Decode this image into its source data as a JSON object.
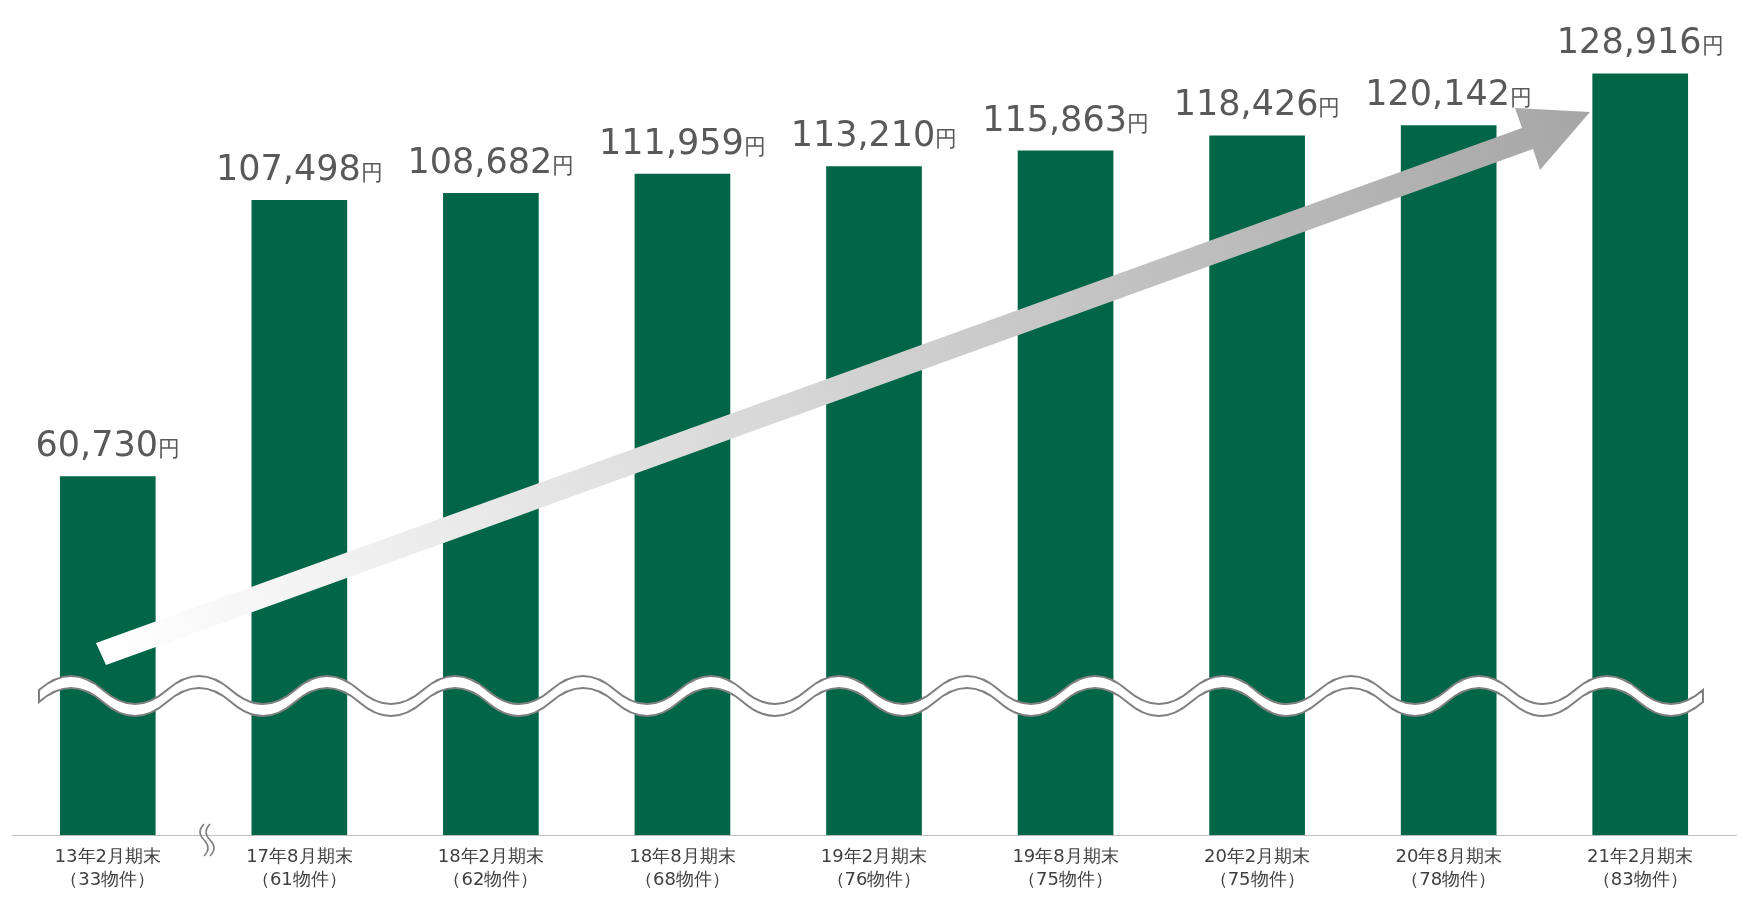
{
  "chart_data": {
    "type": "bar",
    "categories": [
      "13年2月期末（33物件）",
      "17年8月期末（61物件）",
      "18年2月期末（62物件）",
      "18年8月期末（68物件）",
      "19年2月期末（76物件）",
      "19年8月期末（75物件）",
      "20年2月期末（75物件）",
      "20年8月期末（78物件）",
      "21年2月期末（83物件）"
    ],
    "values": [
      60730,
      107498,
      108682,
      111959,
      113210,
      115863,
      118426,
      120142,
      128916
    ],
    "value_labels": [
      "60,730円",
      "107,498円",
      "108,682円",
      "111,959円",
      "113,210円",
      "115,863円",
      "118,426円",
      "120,142円",
      "128,916円"
    ],
    "color": "#006647",
    "tick_labels": "x",
    "grid": false,
    "legend": false
  }
}
